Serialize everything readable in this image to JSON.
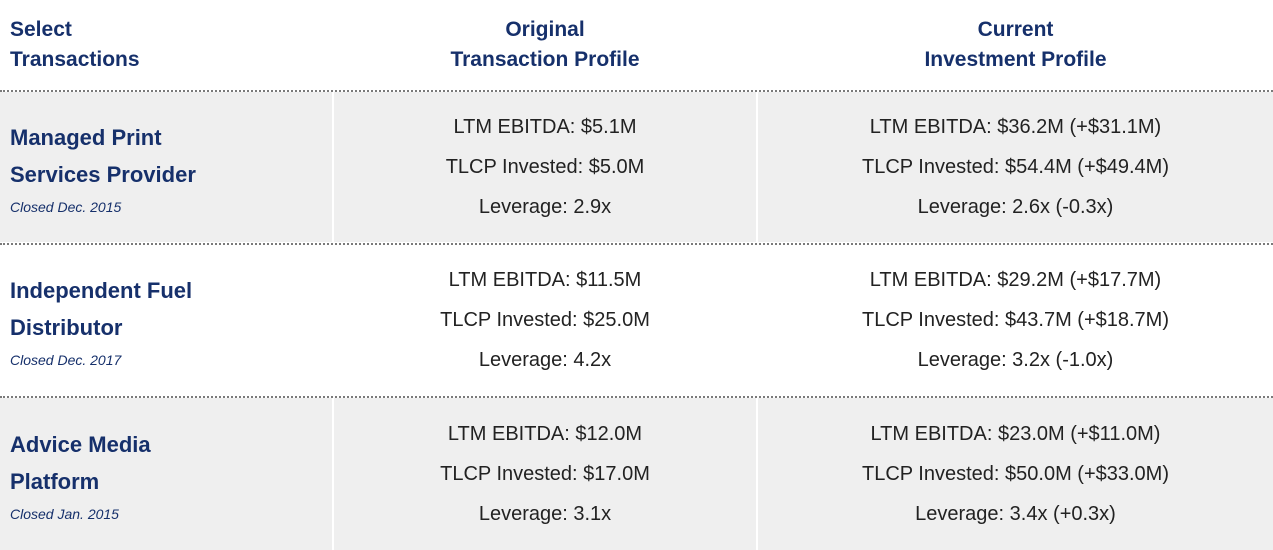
{
  "header": {
    "columns": [
      [
        "Select",
        "Transactions"
      ],
      [
        "Original",
        "Transaction Profile"
      ],
      [
        "Current",
        "Investment Profile"
      ]
    ]
  },
  "table": {
    "rows": [
      {
        "name": "Managed Print Services Provider",
        "closed": "Closed Dec. 2015",
        "original": [
          "LTM EBITDA: $5.1M",
          "TLCP Invested: $5.0M",
          "Leverage: 2.9x"
        ],
        "current": [
          "LTM EBITDA: $36.2M (+$31.1M)",
          "TLCP Invested: $54.4M (+$49.4M)",
          "Leverage: 2.6x (-0.3x)"
        ]
      },
      {
        "name": "Independent Fuel Distributor",
        "closed": "Closed Dec. 2017",
        "original": [
          "LTM EBITDA: $11.5M",
          "TLCP Invested: $25.0M",
          "Leverage: 4.2x"
        ],
        "current": [
          "LTM EBITDA: $29.2M (+$17.7M)",
          "TLCP Invested: $43.7M (+$18.7M)",
          "Leverage: 3.2x (-1.0x)"
        ]
      },
      {
        "name": "Advice Media Platform",
        "closed": "Closed Jan. 2015",
        "original": [
          "LTM EBITDA: $12.0M",
          "TLCP Invested: $17.0M",
          "Leverage: 3.1x"
        ],
        "current": [
          "LTM EBITDA: $23.0M (+$11.0M)",
          "TLCP Invested: $50.0M (+$33.0M)",
          "Leverage: 3.4x (+0.3x)"
        ]
      }
    ]
  }
}
